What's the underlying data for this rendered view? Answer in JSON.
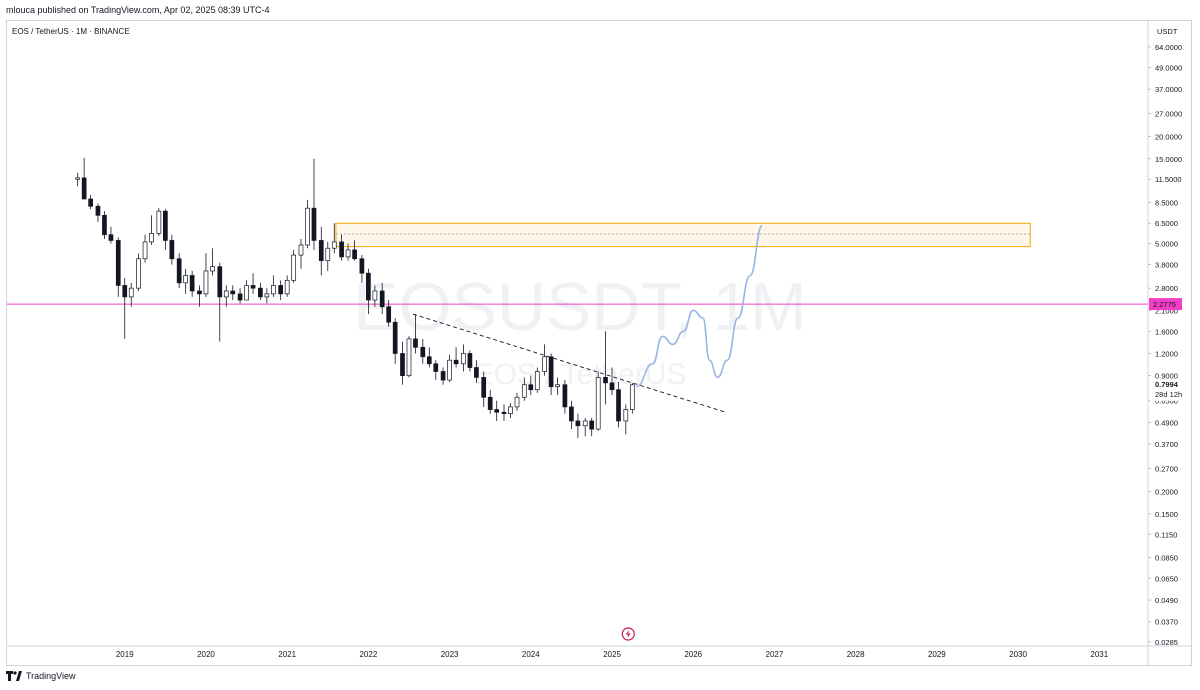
{
  "header": {
    "published_by": "mlouca published on TradingView.com, Apr 02, 2025 08:39 UTC-4"
  },
  "legend": {
    "symbol_line": "EOS / TetherUS · 1M · BINANCE"
  },
  "watermark": {
    "line1": "EOSUSDT, 1M",
    "line2": "EOS / TetherUS"
  },
  "price_scale": {
    "currency": "USDT"
  },
  "footer": {
    "brand": "TradingView"
  },
  "colors": {
    "accent_pink": "#f23dc8",
    "zone_border": "#f7a600",
    "zone_fill": "#fdf3e0",
    "projection": "#9bb3e6"
  },
  "chart_data": {
    "type": "candlestick",
    "title": "",
    "y_scale": "log",
    "ylim": [
      0.027,
      70
    ],
    "xlim": [
      2017.55,
      2031.6
    ],
    "y_ticks": [
      "64.0000",
      "49.0000",
      "37.0000",
      "27.0000",
      "20.0000",
      "15.0000",
      "11.5000",
      "8.5000",
      "6.5000",
      "5.0000",
      "3.8000",
      "2.8000",
      "2.1000",
      "1.6000",
      "1.2000",
      "0.9000",
      "0.6500",
      "0.4900",
      "0.3700",
      "0.2700",
      "0.2000",
      "0.1500",
      "0.1150",
      "0.0850",
      "0.0650",
      "0.0490",
      "0.0370",
      "0.0285"
    ],
    "x_ticks": [
      "2019",
      "2020",
      "2021",
      "2022",
      "2023",
      "2024",
      "2025",
      "2026",
      "2027",
      "2028",
      "2029",
      "2030",
      "2031"
    ],
    "current_price": {
      "label": "0.7994",
      "value": 0.7994,
      "countdown": "28d 12h"
    },
    "horizontal_line": {
      "label": "2.2775",
      "value": 2.2775,
      "color": "#f23dc8"
    },
    "resistance_zone": {
      "x_start": 2021.6,
      "x_end": 2030.15,
      "top": 6.5,
      "bottom": 4.8,
      "mid": 5.65
    },
    "trendline": {
      "points": [
        [
          2022.55,
          2.0
        ],
        [
          2026.4,
          0.56
        ]
      ]
    },
    "projection": {
      "points": [
        [
          2025.3,
          0.78
        ],
        [
          2025.5,
          1.05
        ],
        [
          2025.62,
          1.5
        ],
        [
          2025.75,
          1.35
        ],
        [
          2025.88,
          1.6
        ],
        [
          2026.0,
          2.1
        ],
        [
          2026.12,
          1.9
        ],
        [
          2026.2,
          1.1
        ],
        [
          2026.3,
          0.88
        ],
        [
          2026.42,
          1.1
        ],
        [
          2026.55,
          1.9
        ],
        [
          2026.7,
          3.3
        ],
        [
          2026.85,
          6.3
        ]
      ]
    },
    "candles": [
      {
        "t": 2018.42,
        "o": 11.5,
        "h": 12.5,
        "l": 10.5,
        "c": 11.7
      },
      {
        "t": 2018.5,
        "o": 11.7,
        "h": 15.2,
        "l": 8.9,
        "c": 8.9
      },
      {
        "t": 2018.58,
        "o": 8.9,
        "h": 9.4,
        "l": 7.8,
        "c": 8.1
      },
      {
        "t": 2018.67,
        "o": 8.1,
        "h": 8.4,
        "l": 6.6,
        "c": 7.2
      },
      {
        "t": 2018.75,
        "o": 7.2,
        "h": 7.6,
        "l": 5.3,
        "c": 5.6
      },
      {
        "t": 2018.83,
        "o": 5.6,
        "h": 6.2,
        "l": 5.0,
        "c": 5.2
      },
      {
        "t": 2018.92,
        "o": 5.2,
        "h": 5.4,
        "l": 2.5,
        "c": 2.9
      },
      {
        "t": 2019.0,
        "o": 2.9,
        "h": 3.2,
        "l": 1.45,
        "c": 2.5
      },
      {
        "t": 2019.08,
        "o": 2.5,
        "h": 3.0,
        "l": 2.2,
        "c": 2.8
      },
      {
        "t": 2019.17,
        "o": 2.8,
        "h": 4.4,
        "l": 2.7,
        "c": 4.1
      },
      {
        "t": 2019.25,
        "o": 4.1,
        "h": 5.6,
        "l": 3.9,
        "c": 5.1
      },
      {
        "t": 2019.33,
        "o": 5.1,
        "h": 7.2,
        "l": 4.9,
        "c": 5.7
      },
      {
        "t": 2019.42,
        "o": 5.7,
        "h": 7.9,
        "l": 5.5,
        "c": 7.6
      },
      {
        "t": 2019.5,
        "o": 7.6,
        "h": 7.8,
        "l": 4.6,
        "c": 5.2
      },
      {
        "t": 2019.58,
        "o": 5.2,
        "h": 5.6,
        "l": 3.8,
        "c": 4.1
      },
      {
        "t": 2019.67,
        "o": 4.1,
        "h": 4.4,
        "l": 2.8,
        "c": 3.0
      },
      {
        "t": 2019.75,
        "o": 3.0,
        "h": 3.6,
        "l": 2.6,
        "c": 3.3
      },
      {
        "t": 2019.83,
        "o": 3.3,
        "h": 3.5,
        "l": 2.5,
        "c": 2.7
      },
      {
        "t": 2019.92,
        "o": 2.7,
        "h": 2.9,
        "l": 2.2,
        "c": 2.6
      },
      {
        "t": 2020.0,
        "o": 2.6,
        "h": 4.4,
        "l": 2.5,
        "c": 3.5
      },
      {
        "t": 2020.08,
        "o": 3.5,
        "h": 4.7,
        "l": 3.3,
        "c": 3.7
      },
      {
        "t": 2020.17,
        "o": 3.7,
        "h": 3.9,
        "l": 1.4,
        "c": 2.5
      },
      {
        "t": 2020.25,
        "o": 2.5,
        "h": 2.9,
        "l": 2.2,
        "c": 2.7
      },
      {
        "t": 2020.33,
        "o": 2.7,
        "h": 2.9,
        "l": 2.4,
        "c": 2.6
      },
      {
        "t": 2020.42,
        "o": 2.6,
        "h": 2.8,
        "l": 2.3,
        "c": 2.4
      },
      {
        "t": 2020.5,
        "o": 2.4,
        "h": 3.1,
        "l": 2.4,
        "c": 2.9
      },
      {
        "t": 2020.58,
        "o": 2.9,
        "h": 3.4,
        "l": 2.6,
        "c": 2.8
      },
      {
        "t": 2020.67,
        "o": 2.8,
        "h": 3.0,
        "l": 2.4,
        "c": 2.5
      },
      {
        "t": 2020.75,
        "o": 2.5,
        "h": 2.8,
        "l": 2.3,
        "c": 2.6
      },
      {
        "t": 2020.83,
        "o": 2.6,
        "h": 3.3,
        "l": 2.5,
        "c": 2.9
      },
      {
        "t": 2020.92,
        "o": 2.9,
        "h": 3.1,
        "l": 2.4,
        "c": 2.6
      },
      {
        "t": 2021.0,
        "o": 2.6,
        "h": 3.3,
        "l": 2.5,
        "c": 3.1
      },
      {
        "t": 2021.08,
        "o": 3.1,
        "h": 4.6,
        "l": 3.0,
        "c": 4.3
      },
      {
        "t": 2021.17,
        "o": 4.3,
        "h": 5.3,
        "l": 3.6,
        "c": 4.9
      },
      {
        "t": 2021.25,
        "o": 4.9,
        "h": 8.8,
        "l": 4.7,
        "c": 7.9
      },
      {
        "t": 2021.33,
        "o": 7.9,
        "h": 15.0,
        "l": 4.6,
        "c": 5.2
      },
      {
        "t": 2021.42,
        "o": 5.2,
        "h": 6.2,
        "l": 3.3,
        "c": 4.0
      },
      {
        "t": 2021.5,
        "o": 4.0,
        "h": 5.1,
        "l": 3.5,
        "c": 4.7
      },
      {
        "t": 2021.58,
        "o": 4.7,
        "h": 6.5,
        "l": 4.4,
        "c": 5.1
      },
      {
        "t": 2021.67,
        "o": 5.1,
        "h": 5.6,
        "l": 4.0,
        "c": 4.2
      },
      {
        "t": 2021.75,
        "o": 4.2,
        "h": 5.0,
        "l": 4.0,
        "c": 4.6
      },
      {
        "t": 2021.83,
        "o": 4.6,
        "h": 5.2,
        "l": 4.0,
        "c": 4.1
      },
      {
        "t": 2021.92,
        "o": 4.1,
        "h": 4.3,
        "l": 3.0,
        "c": 3.4
      },
      {
        "t": 2022.0,
        "o": 3.4,
        "h": 3.6,
        "l": 2.0,
        "c": 2.4
      },
      {
        "t": 2022.08,
        "o": 2.4,
        "h": 2.9,
        "l": 2.2,
        "c": 2.7
      },
      {
        "t": 2022.17,
        "o": 2.7,
        "h": 3.0,
        "l": 2.0,
        "c": 2.2
      },
      {
        "t": 2022.25,
        "o": 2.2,
        "h": 2.4,
        "l": 1.7,
        "c": 1.8
      },
      {
        "t": 2022.33,
        "o": 1.8,
        "h": 1.9,
        "l": 1.05,
        "c": 1.2
      },
      {
        "t": 2022.42,
        "o": 1.2,
        "h": 1.4,
        "l": 0.8,
        "c": 0.9
      },
      {
        "t": 2022.5,
        "o": 0.9,
        "h": 1.5,
        "l": 0.88,
        "c": 1.45
      },
      {
        "t": 2022.58,
        "o": 1.45,
        "h": 2.0,
        "l": 1.2,
        "c": 1.3
      },
      {
        "t": 2022.67,
        "o": 1.3,
        "h": 1.45,
        "l": 1.05,
        "c": 1.15
      },
      {
        "t": 2022.75,
        "o": 1.15,
        "h": 1.3,
        "l": 1.0,
        "c": 1.05
      },
      {
        "t": 2022.83,
        "o": 1.05,
        "h": 1.1,
        "l": 0.85,
        "c": 0.95
      },
      {
        "t": 2022.92,
        "o": 0.95,
        "h": 1.0,
        "l": 0.8,
        "c": 0.85
      },
      {
        "t": 2023.0,
        "o": 0.85,
        "h": 1.18,
        "l": 0.83,
        "c": 1.1
      },
      {
        "t": 2023.08,
        "o": 1.1,
        "h": 1.3,
        "l": 1.0,
        "c": 1.05
      },
      {
        "t": 2023.17,
        "o": 1.05,
        "h": 1.35,
        "l": 0.95,
        "c": 1.2
      },
      {
        "t": 2023.25,
        "o": 1.2,
        "h": 1.25,
        "l": 0.95,
        "c": 1.0
      },
      {
        "t": 2023.33,
        "o": 1.0,
        "h": 1.1,
        "l": 0.82,
        "c": 0.88
      },
      {
        "t": 2023.42,
        "o": 0.88,
        "h": 0.95,
        "l": 0.6,
        "c": 0.68
      },
      {
        "t": 2023.5,
        "o": 0.68,
        "h": 0.75,
        "l": 0.55,
        "c": 0.58
      },
      {
        "t": 2023.58,
        "o": 0.58,
        "h": 0.65,
        "l": 0.5,
        "c": 0.56
      },
      {
        "t": 2023.67,
        "o": 0.56,
        "h": 0.62,
        "l": 0.5,
        "c": 0.55
      },
      {
        "t": 2023.75,
        "o": 0.55,
        "h": 0.63,
        "l": 0.52,
        "c": 0.6
      },
      {
        "t": 2023.83,
        "o": 0.6,
        "h": 0.72,
        "l": 0.57,
        "c": 0.68
      },
      {
        "t": 2023.92,
        "o": 0.68,
        "h": 0.88,
        "l": 0.65,
        "c": 0.8
      },
      {
        "t": 2024.0,
        "o": 0.8,
        "h": 0.9,
        "l": 0.7,
        "c": 0.75
      },
      {
        "t": 2024.08,
        "o": 0.75,
        "h": 1.0,
        "l": 0.72,
        "c": 0.95
      },
      {
        "t": 2024.17,
        "o": 0.95,
        "h": 1.35,
        "l": 0.9,
        "c": 1.15
      },
      {
        "t": 2024.25,
        "o": 1.15,
        "h": 1.2,
        "l": 0.7,
        "c": 0.78
      },
      {
        "t": 2024.33,
        "o": 0.78,
        "h": 0.88,
        "l": 0.7,
        "c": 0.8
      },
      {
        "t": 2024.42,
        "o": 0.8,
        "h": 0.85,
        "l": 0.55,
        "c": 0.6
      },
      {
        "t": 2024.5,
        "o": 0.6,
        "h": 0.65,
        "l": 0.45,
        "c": 0.5
      },
      {
        "t": 2024.58,
        "o": 0.5,
        "h": 0.55,
        "l": 0.4,
        "c": 0.47
      },
      {
        "t": 2024.67,
        "o": 0.47,
        "h": 0.52,
        "l": 0.41,
        "c": 0.5
      },
      {
        "t": 2024.75,
        "o": 0.5,
        "h": 0.52,
        "l": 0.41,
        "c": 0.45
      },
      {
        "t": 2024.83,
        "o": 0.45,
        "h": 0.95,
        "l": 0.44,
        "c": 0.88
      },
      {
        "t": 2024.92,
        "o": 0.88,
        "h": 1.6,
        "l": 0.62,
        "c": 0.82
      },
      {
        "t": 2025.0,
        "o": 0.82,
        "h": 1.0,
        "l": 0.7,
        "c": 0.75
      },
      {
        "t": 2025.08,
        "o": 0.75,
        "h": 0.83,
        "l": 0.46,
        "c": 0.5
      },
      {
        "t": 2025.17,
        "o": 0.5,
        "h": 0.62,
        "l": 0.42,
        "c": 0.58
      },
      {
        "t": 2025.25,
        "o": 0.58,
        "h": 0.82,
        "l": 0.55,
        "c": 0.7994
      }
    ]
  }
}
